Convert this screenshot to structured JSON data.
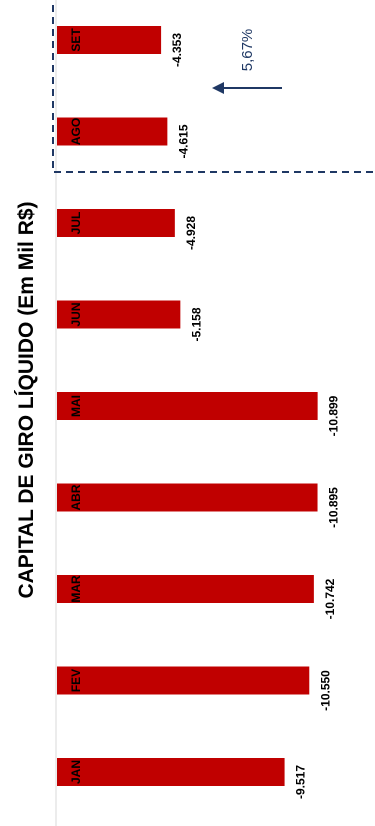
{
  "chart_data": {
    "type": "bar",
    "orientation": "horizontal",
    "title": "CAPITAL DE GIRO LÍQUIDO (Em Mil R$)",
    "categories": [
      "SET",
      "AGO",
      "JUL",
      "JUN",
      "MAI",
      "ABR",
      "MAR",
      "FEV",
      "JAN"
    ],
    "values": [
      -4353,
      -4615,
      -4928,
      -5158,
      -10899,
      -10895,
      -10742,
      -10550,
      -9517
    ],
    "value_labels": [
      "-4.353",
      "-4.615",
      "-4.928",
      "-5.158",
      "-10.899",
      "-10.895",
      "-10.742",
      "-10.550",
      "-9.517"
    ],
    "bar_color": "#c00000",
    "highlight": {
      "categories": [
        "SET",
        "AGO"
      ],
      "label": "5,67%",
      "border_color": "#1f3864",
      "arrow_color": "#1f3864"
    },
    "axis_max": 11500
  }
}
